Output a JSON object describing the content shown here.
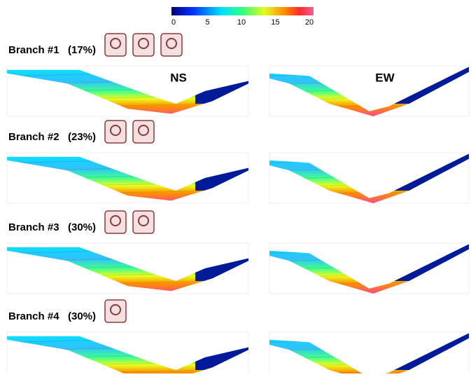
{
  "colorbar": {
    "ticks": [
      0,
      5,
      10,
      15,
      20
    ]
  },
  "sections": {
    "ns": "NS",
    "ew": "EW"
  },
  "branches": [
    {
      "name": "Branch #1",
      "weight": "(17%)"
    },
    {
      "name": "Branch #2",
      "weight": "(23%)"
    },
    {
      "name": "Branch #3",
      "weight": "(30%)"
    },
    {
      "name": "Branch #4",
      "weight": "(30%)"
    }
  ]
}
